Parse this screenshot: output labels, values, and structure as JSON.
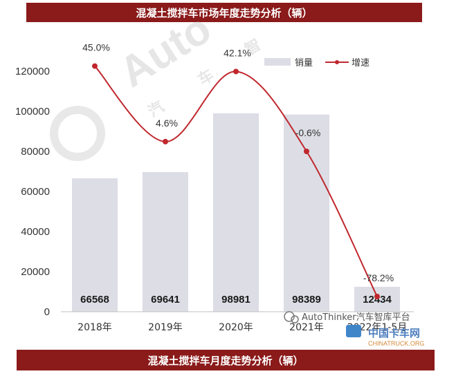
{
  "header": {
    "title": "混凝土搅拌车市场年度走势分析（辆）"
  },
  "footer": {
    "title": "混凝土搅拌车月度走势分析（辆）"
  },
  "watermark": {
    "brand": "Auto",
    "chars": [
      "汽",
      "车",
      "智"
    ]
  },
  "source": {
    "text": "AutoThinker汽车智库平台",
    "logo_text": "中国卡车网",
    "logo_sub": "CHINATRUCK.ORG"
  },
  "colors": {
    "bar": "#dcdde5",
    "line": "#c0272d",
    "banner": "#8b1a1a"
  },
  "chart_data": {
    "type": "bar",
    "categories": [
      "2018年",
      "2019年",
      "2020年",
      "2021年",
      "2022年1-5月"
    ],
    "series": [
      {
        "name": "销量",
        "type": "bar",
        "values": [
          66568,
          69641,
          98981,
          98389,
          12434
        ]
      },
      {
        "name": "增速",
        "type": "line",
        "values": [
          45.0,
          4.6,
          42.1,
          -0.6,
          -78.2
        ],
        "labels": [
          "45.0%",
          "4.6%",
          "42.1%",
          "-0.6%",
          "-78.2%"
        ]
      }
    ],
    "ylim": [
      0,
      120000
    ],
    "yticks": [
      0,
      20000,
      40000,
      60000,
      80000,
      100000,
      120000
    ],
    "legend": "top-right",
    "grid": false
  }
}
